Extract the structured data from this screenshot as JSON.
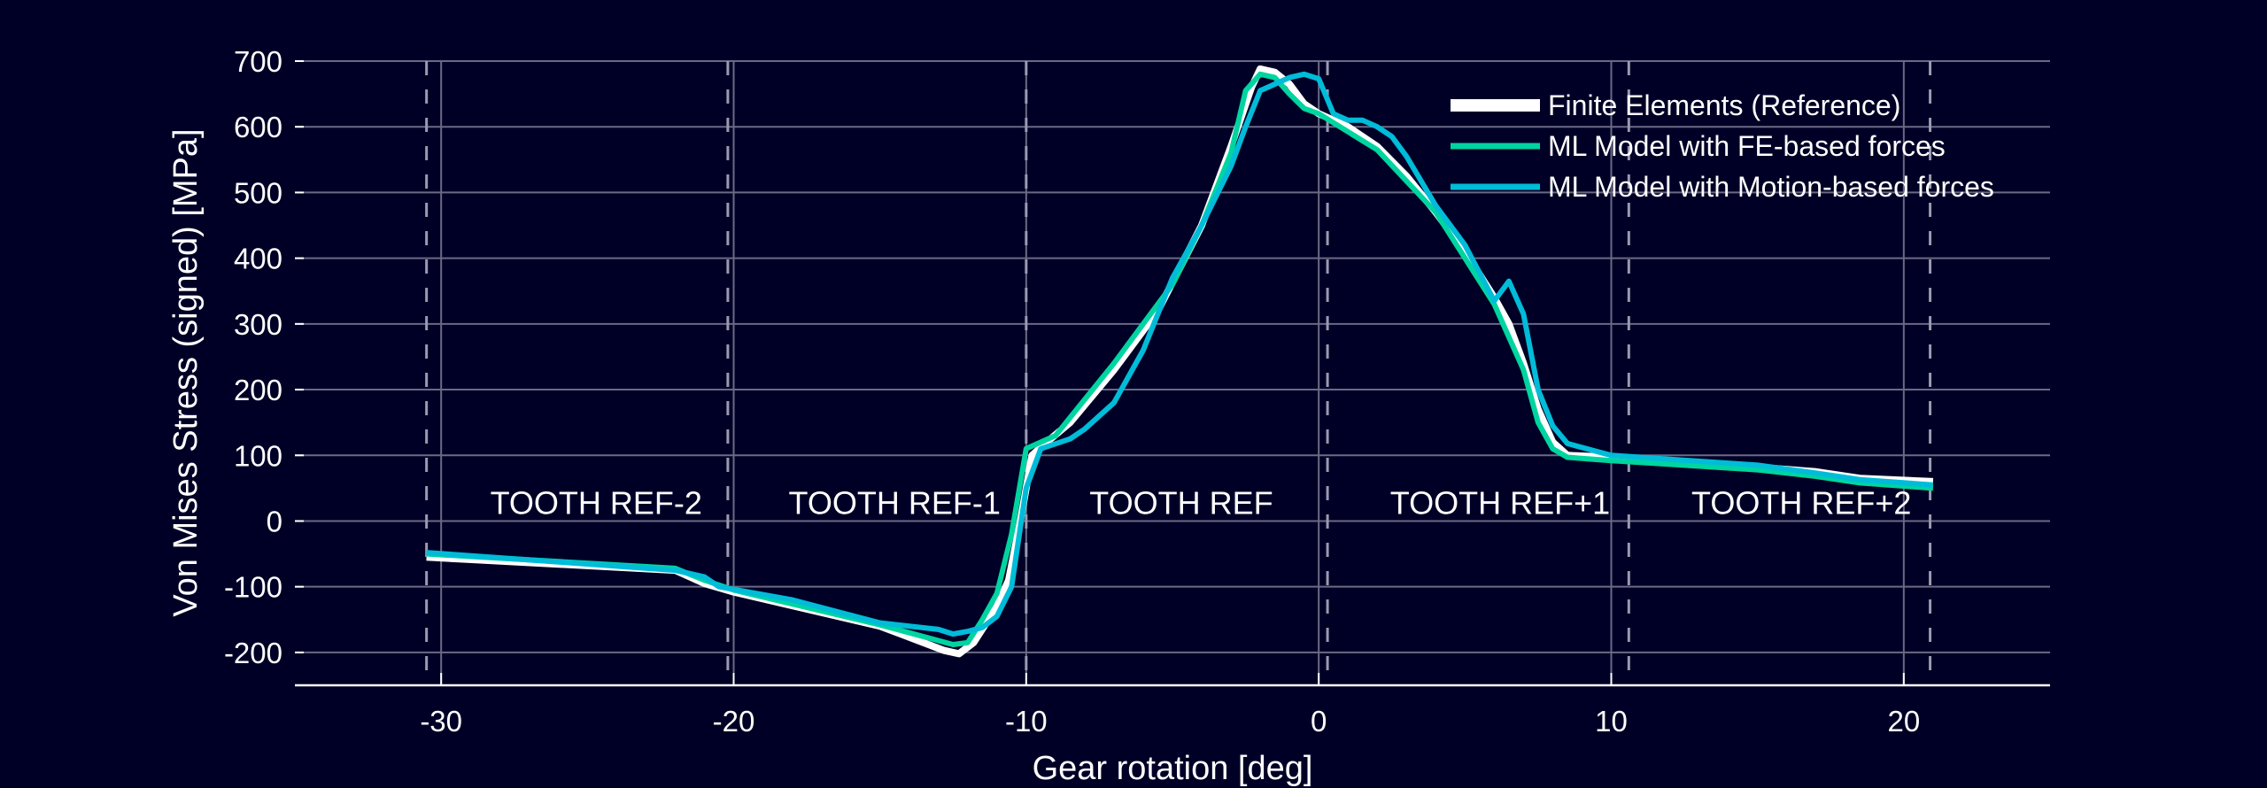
{
  "chart_data": {
    "type": "line",
    "title": "",
    "xlabel": "Gear rotation [deg]",
    "ylabel": "Von Mises Stress (signed) [MPa]",
    "xlim": [
      -35,
      25
    ],
    "ylim": [
      -250,
      700
    ],
    "xticks": [
      -30,
      -20,
      -10,
      0,
      10,
      20
    ],
    "yticks": [
      -200,
      -100,
      0,
      100,
      200,
      300,
      400,
      500,
      600,
      700
    ],
    "grid": true,
    "legend_position": "top-right",
    "tooth_boundaries": [
      -30.5,
      -20.2,
      -10.0,
      0.3,
      10.6,
      20.9
    ],
    "annotations": [
      {
        "text": "TOOTH REF-2",
        "x": -24.7,
        "y": 28
      },
      {
        "text": "TOOTH REF-1",
        "x": -14.5,
        "y": 28
      },
      {
        "text": "TOOTH REF",
        "x": -4.7,
        "y": 28
      },
      {
        "text": "TOOTH REF+1",
        "x": 6.2,
        "y": 28
      },
      {
        "text": "TOOTH REF+2",
        "x": 16.5,
        "y": 28
      }
    ],
    "series": [
      {
        "name": "Finite Elements (Reference)",
        "color": "#ffffff",
        "x": [
          -30.5,
          -22,
          -21,
          -20,
          -15,
          -12.8,
          -12.3,
          -11.8,
          -11,
          -10.6,
          -10.2,
          -9.8,
          -9.3,
          -8.5,
          -7,
          -5.5,
          -4,
          -3,
          -2.3,
          -2,
          -1.5,
          -1,
          -0.5,
          0,
          1,
          2,
          3,
          4,
          5,
          6,
          6.5,
          7,
          7.5,
          8,
          8.5,
          10,
          12,
          15,
          17,
          18.5,
          21
        ],
        "y": [
          -55,
          -75,
          -95,
          -108,
          -160,
          -197,
          -202,
          -185,
          -130,
          -90,
          0,
          100,
          120,
          150,
          230,
          320,
          450,
          570,
          660,
          688,
          683,
          665,
          635,
          620,
          600,
          570,
          525,
          470,
          410,
          340,
          300,
          240,
          170,
          120,
          100,
          97,
          92,
          82,
          75,
          65,
          60
        ]
      },
      {
        "name": "ML Model with FE-based forces",
        "color": "#00d4a0",
        "x": [
          -30.5,
          -22,
          -21,
          -20,
          -15,
          -12.5,
          -12,
          -11.5,
          -11,
          -10.5,
          -10,
          -9,
          -7,
          -5,
          -4,
          -3,
          -2.5,
          -2,
          -1.5,
          -1,
          -0.5,
          0,
          2,
          4,
          6,
          7,
          7.5,
          8,
          8.5,
          10,
          15,
          17,
          18.5,
          21
        ],
        "y": [
          -50,
          -72,
          -90,
          -105,
          -158,
          -188,
          -185,
          -150,
          -110,
          -20,
          110,
          130,
          240,
          360,
          450,
          560,
          655,
          680,
          675,
          650,
          628,
          620,
          565,
          470,
          330,
          230,
          150,
          110,
          97,
          92,
          78,
          68,
          58,
          50
        ]
      },
      {
        "name": "ML Model with Motion-based forces",
        "color": "#00bcd8",
        "x": [
          -30.5,
          -22,
          -21,
          -20.5,
          -18,
          -15,
          -13,
          -12.5,
          -12,
          -11.5,
          -11,
          -10.5,
          -10,
          -9.5,
          -8.5,
          -8,
          -7,
          -6,
          -5,
          -4,
          -3,
          -2.5,
          -2,
          -1.5,
          -1,
          -0.5,
          0,
          0.5,
          1,
          1.5,
          2,
          2.5,
          3,
          4,
          5,
          6,
          6.5,
          7,
          7.5,
          8,
          8.5,
          9,
          10,
          15,
          17,
          18.5,
          21
        ],
        "y": [
          -48,
          -75,
          -85,
          -100,
          -120,
          -155,
          -165,
          -172,
          -168,
          -162,
          -145,
          -100,
          50,
          110,
          125,
          140,
          180,
          260,
          370,
          450,
          540,
          600,
          655,
          665,
          675,
          680,
          673,
          620,
          610,
          610,
          600,
          585,
          555,
          480,
          420,
          335,
          365,
          315,
          200,
          145,
          118,
          112,
          100,
          85,
          73,
          63,
          55
        ]
      }
    ]
  }
}
